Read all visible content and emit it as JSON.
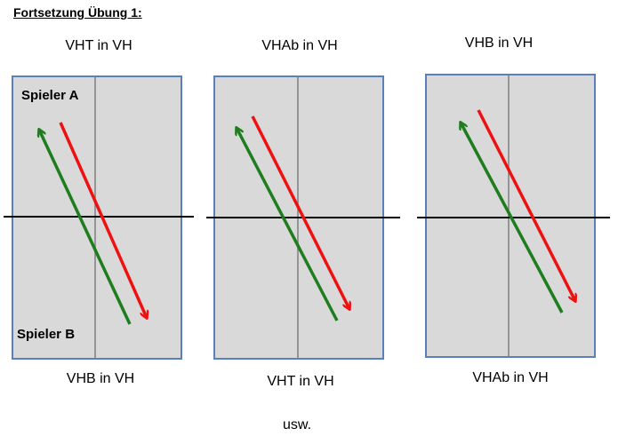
{
  "heading": "Fortsetzung Übung 1:",
  "players": {
    "top": "Spieler A",
    "bottom": "Spieler B"
  },
  "footer": "usw.",
  "colors": {
    "court_fill": "#d9d9d9",
    "court_border": "#5b7fb8",
    "center_line": "#7f7f7f",
    "net": "#000000",
    "player_a_arrow": "#ee1111",
    "player_b_arrow": "#1e7d1e"
  },
  "drills": [
    {
      "top_label": "VHT in VH",
      "bottom_label": "VHB in VH"
    },
    {
      "top_label": "VHAb in VH",
      "bottom_label": "VHT in VH"
    },
    {
      "top_label": "VHB in VH",
      "bottom_label": "VHAb in VH"
    }
  ]
}
